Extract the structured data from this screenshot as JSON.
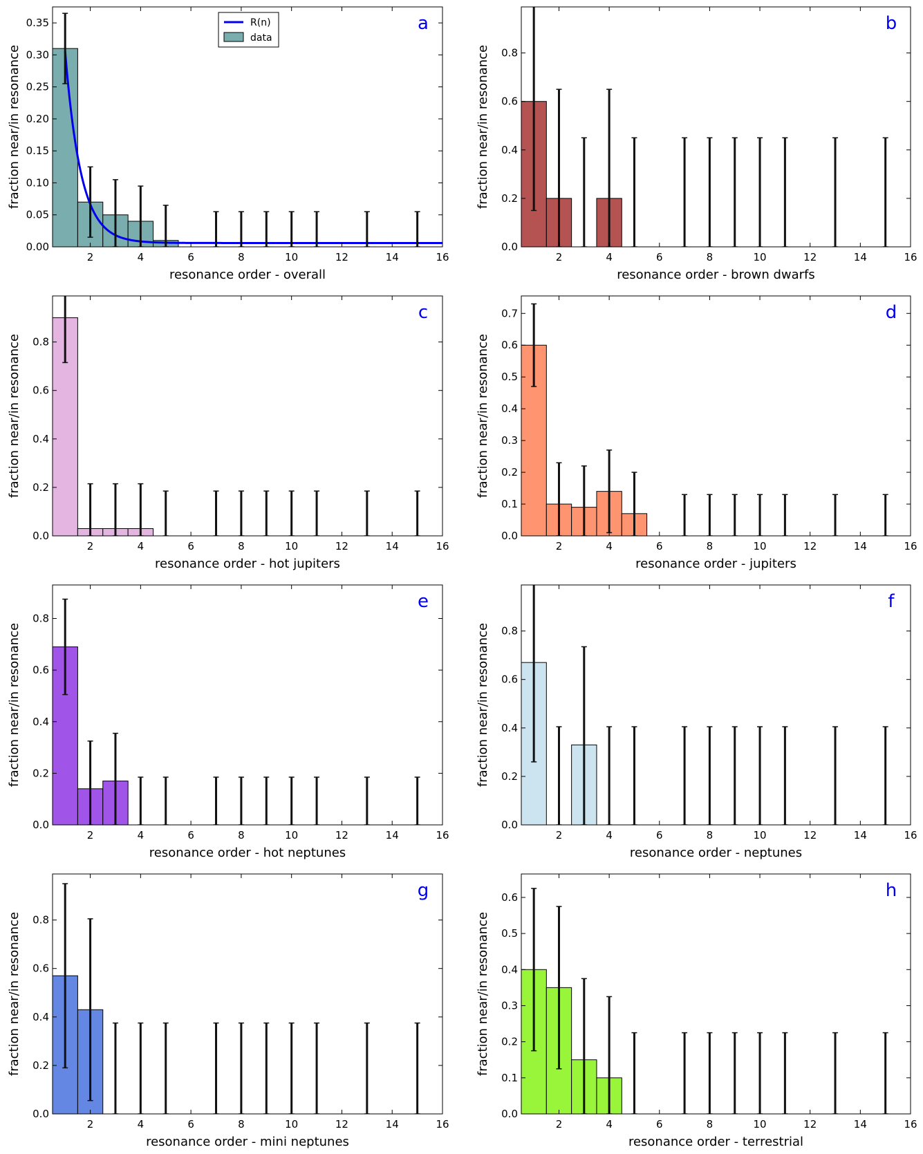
{
  "figure": {
    "shared": {
      "ylabel": "fraction near/in resonance",
      "xticks": [
        "2",
        "4",
        "6",
        "8",
        "10",
        "12",
        "14",
        "16"
      ]
    }
  },
  "chart_data": [
    {
      "id": "a",
      "panel_label": "a",
      "type": "bar",
      "xlabel": "resonance order - overall",
      "color": "#7aadad",
      "xlim": [
        0.5,
        16
      ],
      "ylim": [
        0,
        0.375
      ],
      "yticks": [
        "0.00",
        "0.05",
        "0.10",
        "0.15",
        "0.20",
        "0.25",
        "0.30",
        "0.35"
      ],
      "ytick_values": [
        0,
        0.05,
        0.1,
        0.15,
        0.2,
        0.25,
        0.3,
        0.35
      ],
      "x": [
        1,
        2,
        3,
        4,
        5,
        7,
        8,
        9,
        10,
        11,
        13,
        15
      ],
      "values": [
        0.31,
        0.07,
        0.05,
        0.04,
        0.01,
        0,
        0,
        0,
        0,
        0,
        0,
        0
      ],
      "err_low": [
        0.255,
        0.015,
        0,
        0,
        0,
        0,
        0,
        0,
        0,
        0,
        0,
        0
      ],
      "err_high": [
        0.365,
        0.125,
        0.105,
        0.095,
        0.065,
        0.055,
        0.055,
        0.055,
        0.055,
        0.055,
        0.055,
        0.055
      ],
      "fit": {
        "name": "R(n)",
        "color": "#0000ee",
        "amplitude": 0.3,
        "rate": 1.6,
        "offset": 0.006
      },
      "legend": {
        "placement": "top-center",
        "entries": [
          {
            "label": "R(n)",
            "kind": "line"
          },
          {
            "label": "data",
            "kind": "patch"
          }
        ]
      }
    },
    {
      "id": "b",
      "panel_label": "b",
      "type": "bar",
      "xlabel": "resonance order - brown dwarfs",
      "color": "#b55353",
      "xlim": [
        0.5,
        16
      ],
      "ylim": [
        0,
        0.99
      ],
      "yticks": [
        "0.0",
        "0.2",
        "0.4",
        "0.6",
        "0.8"
      ],
      "ytick_values": [
        0,
        0.2,
        0.4,
        0.6,
        0.8
      ],
      "x": [
        1,
        2,
        3,
        4,
        5,
        7,
        8,
        9,
        10,
        11,
        13,
        15
      ],
      "values": [
        0.6,
        0.2,
        0,
        0.2,
        0,
        0,
        0,
        0,
        0,
        0,
        0,
        0
      ],
      "err_low": [
        0.15,
        0,
        0,
        0,
        0,
        0,
        0,
        0,
        0,
        0,
        0,
        0
      ],
      "err_high": [
        1.05,
        0.65,
        0.45,
        0.65,
        0.45,
        0.45,
        0.45,
        0.45,
        0.45,
        0.45,
        0.45,
        0.45
      ]
    },
    {
      "id": "c",
      "panel_label": "c",
      "type": "bar",
      "xlabel": "resonance order - hot jupiters",
      "color": "#e4b5e0",
      "xlim": [
        0.5,
        16
      ],
      "ylim": [
        0,
        0.99
      ],
      "yticks": [
        "0.0",
        "0.2",
        "0.4",
        "0.6",
        "0.8"
      ],
      "ytick_values": [
        0,
        0.2,
        0.4,
        0.6,
        0.8
      ],
      "x": [
        1,
        2,
        3,
        4,
        5,
        7,
        8,
        9,
        10,
        11,
        13,
        15
      ],
      "values": [
        0.9,
        0.03,
        0.03,
        0.03,
        0,
        0,
        0,
        0,
        0,
        0,
        0,
        0
      ],
      "err_low": [
        0.715,
        0,
        0,
        0,
        0,
        0,
        0,
        0,
        0,
        0,
        0,
        0
      ],
      "err_high": [
        1.085,
        0.215,
        0.215,
        0.215,
        0.185,
        0.185,
        0.185,
        0.185,
        0.185,
        0.185,
        0.185,
        0.185
      ]
    },
    {
      "id": "d",
      "panel_label": "d",
      "type": "bar",
      "xlabel": "resonance order - jupiters",
      "color": "#fe9570",
      "xlim": [
        0.5,
        16
      ],
      "ylim": [
        0,
        0.755
      ],
      "yticks": [
        "0.0",
        "0.1",
        "0.2",
        "0.3",
        "0.4",
        "0.5",
        "0.6",
        "0.7"
      ],
      "ytick_values": [
        0,
        0.1,
        0.2,
        0.3,
        0.4,
        0.5,
        0.6,
        0.7
      ],
      "x": [
        1,
        2,
        3,
        4,
        5,
        7,
        8,
        9,
        10,
        11,
        13,
        15
      ],
      "values": [
        0.6,
        0.1,
        0.09,
        0.14,
        0.07,
        0,
        0,
        0,
        0,
        0,
        0,
        0
      ],
      "err_low": [
        0.47,
        0,
        0,
        0.01,
        0,
        0,
        0,
        0,
        0,
        0,
        0,
        0
      ],
      "err_high": [
        0.73,
        0.23,
        0.22,
        0.27,
        0.2,
        0.13,
        0.13,
        0.13,
        0.13,
        0.13,
        0.13,
        0.13
      ]
    },
    {
      "id": "e",
      "panel_label": "e",
      "type": "bar",
      "xlabel": "resonance order - hot neptunes",
      "color": "#a155e8",
      "xlim": [
        0.5,
        16
      ],
      "ylim": [
        0,
        0.93
      ],
      "yticks": [
        "0.0",
        "0.2",
        "0.4",
        "0.6",
        "0.8"
      ],
      "ytick_values": [
        0,
        0.2,
        0.4,
        0.6,
        0.8
      ],
      "x": [
        1,
        2,
        3,
        4,
        5,
        7,
        8,
        9,
        10,
        11,
        13,
        15
      ],
      "values": [
        0.69,
        0.14,
        0.17,
        0,
        0,
        0,
        0,
        0,
        0,
        0,
        0,
        0
      ],
      "err_low": [
        0.505,
        0,
        0,
        0,
        0,
        0,
        0,
        0,
        0,
        0,
        0,
        0
      ],
      "err_high": [
        0.875,
        0.325,
        0.355,
        0.185,
        0.185,
        0.185,
        0.185,
        0.185,
        0.185,
        0.185,
        0.185,
        0.185
      ]
    },
    {
      "id": "f",
      "panel_label": "f",
      "type": "bar",
      "xlabel": "resonance order - neptunes",
      "color": "#cce4ef",
      "xlim": [
        0.5,
        16
      ],
      "ylim": [
        0,
        0.99
      ],
      "yticks": [
        "0.0",
        "0.2",
        "0.4",
        "0.6",
        "0.8"
      ],
      "ytick_values": [
        0,
        0.2,
        0.4,
        0.6,
        0.8
      ],
      "x": [
        1,
        2,
        3,
        4,
        5,
        7,
        8,
        9,
        10,
        11,
        13,
        15
      ],
      "values": [
        0.67,
        0,
        0.33,
        0,
        0,
        0,
        0,
        0,
        0,
        0,
        0,
        0
      ],
      "err_low": [
        0.26,
        0,
        0,
        0,
        0,
        0,
        0,
        0,
        0,
        0,
        0,
        0
      ],
      "err_high": [
        1.08,
        0.405,
        0.735,
        0.405,
        0.405,
        0.405,
        0.405,
        0.405,
        0.405,
        0.405,
        0.405,
        0.405
      ]
    },
    {
      "id": "g",
      "panel_label": "g",
      "type": "bar",
      "xlabel": "resonance order - mini neptunes",
      "color": "#6487e3",
      "xlim": [
        0.5,
        16
      ],
      "ylim": [
        0,
        0.99
      ],
      "yticks": [
        "0.0",
        "0.2",
        "0.4",
        "0.6",
        "0.8"
      ],
      "ytick_values": [
        0,
        0.2,
        0.4,
        0.6,
        0.8
      ],
      "x": [
        1,
        2,
        3,
        4,
        5,
        7,
        8,
        9,
        10,
        11,
        13,
        15
      ],
      "values": [
        0.57,
        0.43,
        0,
        0,
        0,
        0,
        0,
        0,
        0,
        0,
        0,
        0
      ],
      "err_low": [
        0.19,
        0.055,
        0,
        0,
        0,
        0,
        0,
        0,
        0,
        0,
        0,
        0
      ],
      "err_high": [
        0.95,
        0.805,
        0.375,
        0.375,
        0.375,
        0.375,
        0.375,
        0.375,
        0.375,
        0.375,
        0.375,
        0.375
      ]
    },
    {
      "id": "h",
      "panel_label": "h",
      "type": "bar",
      "xlabel": "resonance order - terrestrial",
      "color": "#99f53a",
      "xlim": [
        0.5,
        16
      ],
      "ylim": [
        0,
        0.665
      ],
      "yticks": [
        "0.0",
        "0.1",
        "0.2",
        "0.3",
        "0.4",
        "0.5",
        "0.6"
      ],
      "ytick_values": [
        0,
        0.1,
        0.2,
        0.3,
        0.4,
        0.5,
        0.6
      ],
      "x": [
        1,
        2,
        3,
        4,
        5,
        7,
        8,
        9,
        10,
        11,
        13,
        15
      ],
      "values": [
        0.4,
        0.35,
        0.15,
        0.1,
        0,
        0,
        0,
        0,
        0,
        0,
        0,
        0
      ],
      "err_low": [
        0.175,
        0.125,
        0,
        0,
        0,
        0,
        0,
        0,
        0,
        0,
        0,
        0
      ],
      "err_high": [
        0.625,
        0.575,
        0.375,
        0.325,
        0.225,
        0.225,
        0.225,
        0.225,
        0.225,
        0.225,
        0.225,
        0.225
      ]
    }
  ]
}
